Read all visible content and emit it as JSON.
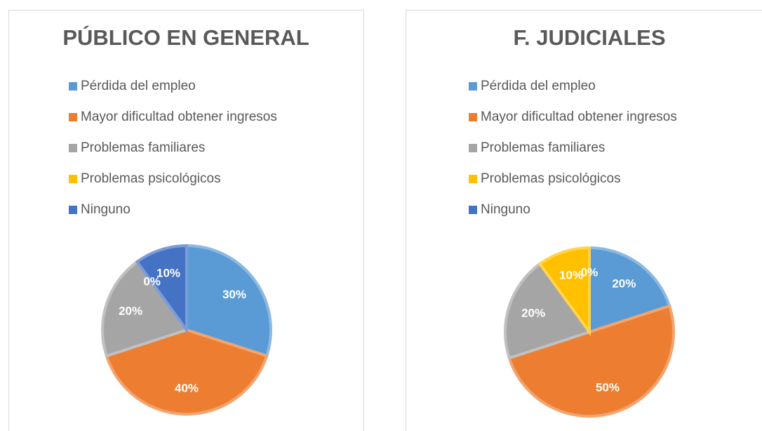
{
  "chart_data": [
    {
      "type": "pie",
      "title": "PÚBLICO EN GENERAL",
      "categories": [
        "Pérdida del empleo",
        "Mayor dificultad obtener ingresos",
        "Problemas familiares",
        "Problemas psicológicos",
        "Ninguno"
      ],
      "values": [
        30,
        40,
        20,
        0,
        10
      ],
      "value_labels": [
        "30%",
        "40%",
        "20%",
        "0%",
        "10%"
      ],
      "colors": [
        "#5b9bd5",
        "#ed7d31",
        "#a5a5a5",
        "#ffc000",
        "#4472c4"
      ]
    },
    {
      "type": "pie",
      "title": "F. JUDICIALES",
      "categories": [
        "Pérdida del empleo",
        "Mayor dificultad obtener ingresos",
        "Problemas familiares",
        "Problemas psicológicos",
        "Ninguno"
      ],
      "values": [
        20,
        50,
        20,
        10,
        0
      ],
      "value_labels": [
        "20%",
        "50%",
        "20%",
        "10%",
        "0%"
      ],
      "colors": [
        "#5b9bd5",
        "#ed7d31",
        "#a5a5a5",
        "#ffc000",
        "#4472c4"
      ]
    }
  ]
}
